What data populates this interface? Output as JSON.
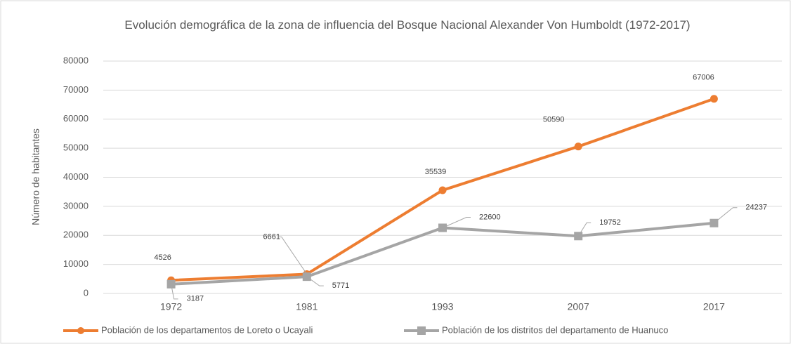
{
  "chart_data": {
    "type": "line",
    "title": "Evolución demográfica de la zona de influencia del Bosque Nacional Alexander Von Humboldt (1972-2017)",
    "y_label": "Número de habitantes",
    "categories": [
      "1972",
      "1981",
      "1993",
      "2007",
      "2017"
    ],
    "series": [
      {
        "name": "Población de los departamentos de Loreto o Ucayali",
        "color": "#ed7d31",
        "marker": "circle",
        "values": [
          4526,
          6661,
          35539,
          50590,
          67006
        ]
      },
      {
        "name": "Población de los distritos del departamento de Huanuco",
        "color": "#a5a5a5",
        "marker": "square",
        "values": [
          3187,
          5771,
          22600,
          19752,
          24237
        ]
      }
    ],
    "ylim": [
      0,
      80000
    ],
    "yticks": [
      0,
      10000,
      20000,
      30000,
      40000,
      50000,
      60000,
      70000,
      80000
    ],
    "grid": true,
    "legend": "bottom"
  }
}
